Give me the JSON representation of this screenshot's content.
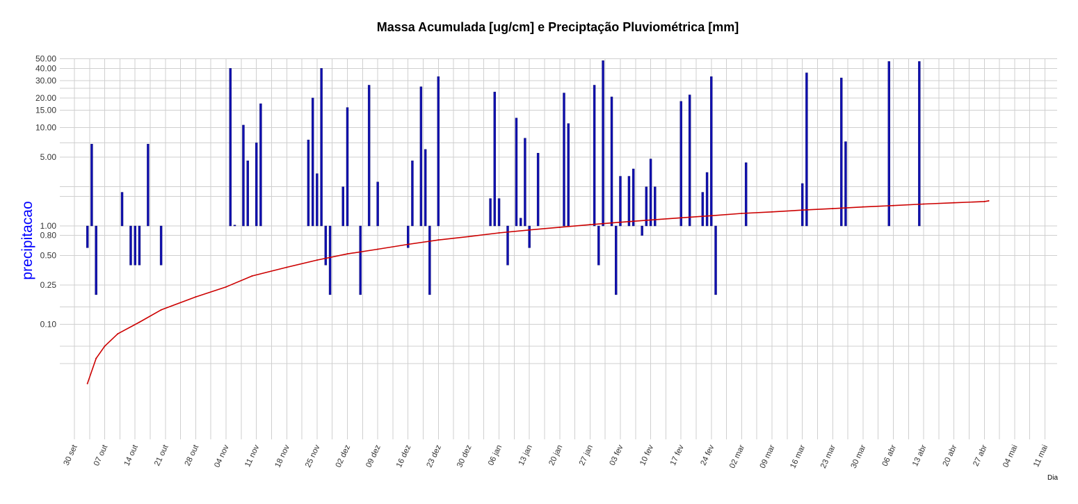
{
  "chart_data": {
    "type": "bar",
    "title": "Massa Acumulada [ug/cm] e Preciptação Pluviométrica [mm]",
    "ylabel": "precipitacao",
    "xlabel": "Dia",
    "y_scale": "log",
    "ylim": [
      0.015,
      55
    ],
    "xlim": [
      "2023-09-22",
      "2024-05-13"
    ],
    "grid": true,
    "legend": "none",
    "colors": {
      "bars": "#1010b0",
      "line": "#cc0000",
      "ylabel": "#0000ff",
      "grid": "#cfcfcf"
    },
    "y_ticks": [
      {
        "v": 0.1,
        "label": "0.10"
      },
      {
        "v": 0.25,
        "label": "0.25"
      },
      {
        "v": 0.5,
        "label": "0.50"
      },
      {
        "v": 0.8,
        "label": "0.80"
      },
      {
        "v": 1,
        "label": "1.00"
      },
      {
        "v": 5,
        "label": "5.00"
      },
      {
        "v": 10,
        "label": "10.00"
      },
      {
        "v": 15,
        "label": "15.00"
      },
      {
        "v": 20,
        "label": "20.00"
      },
      {
        "v": 30,
        "label": "30.00"
      },
      {
        "v": 40,
        "label": "40.00"
      },
      {
        "v": 50,
        "label": "50.00"
      }
    ],
    "y_minor_grid": [
      0.04,
      0.06,
      0.15,
      2,
      2.5,
      7,
      25
    ],
    "x_ticks": [
      {
        "d": "2023-09-30",
        "label": "30 set"
      },
      {
        "d": "2023-10-07",
        "label": "07 out"
      },
      {
        "d": "2023-10-14",
        "label": "14 out"
      },
      {
        "d": "2023-10-21",
        "label": "21 out"
      },
      {
        "d": "2023-10-28",
        "label": "28 out"
      },
      {
        "d": "2023-11-04",
        "label": "04 nov"
      },
      {
        "d": "2023-11-11",
        "label": "11 nov"
      },
      {
        "d": "2023-11-18",
        "label": "18 nov"
      },
      {
        "d": "2023-11-25",
        "label": "25 nov"
      },
      {
        "d": "2023-12-02",
        "label": "02 dez"
      },
      {
        "d": "2023-12-09",
        "label": "09 dez"
      },
      {
        "d": "2023-12-16",
        "label": "16 dez"
      },
      {
        "d": "2023-12-23",
        "label": "23 dez"
      },
      {
        "d": "2023-12-30",
        "label": "30 dez"
      },
      {
        "d": "2024-01-06",
        "label": "06 jan"
      },
      {
        "d": "2024-01-13",
        "label": "13 jan"
      },
      {
        "d": "2024-01-20",
        "label": "20 jan"
      },
      {
        "d": "2024-01-27",
        "label": "27 jan"
      },
      {
        "d": "2024-02-03",
        "label": "03 fev"
      },
      {
        "d": "2024-02-10",
        "label": "10 fev"
      },
      {
        "d": "2024-02-17",
        "label": "17 fev"
      },
      {
        "d": "2024-02-24",
        "label": "24 fev"
      },
      {
        "d": "2024-03-02",
        "label": "02 mar"
      },
      {
        "d": "2024-03-09",
        "label": "09 mar"
      },
      {
        "d": "2024-03-16",
        "label": "16 mar"
      },
      {
        "d": "2024-03-23",
        "label": "23 mar"
      },
      {
        "d": "2024-03-30",
        "label": "30 mar"
      },
      {
        "d": "2024-04-06",
        "label": "06 abr"
      },
      {
        "d": "2024-04-13",
        "label": "13 abr"
      },
      {
        "d": "2024-04-20",
        "label": "20 abr"
      },
      {
        "d": "2024-04-27",
        "label": "27 abr"
      },
      {
        "d": "2024-05-04",
        "label": "04 mai"
      },
      {
        "d": "2024-05-11",
        "label": "11 mai"
      }
    ],
    "bar_baseline": 1,
    "precipitacao": [
      {
        "d": "2023-10-03",
        "v": 0.6
      },
      {
        "d": "2023-10-04",
        "v": 6.8
      },
      {
        "d": "2023-10-05",
        "v": 0.2
      },
      {
        "d": "2023-10-11",
        "v": 2.2
      },
      {
        "d": "2023-10-13",
        "v": 0.4
      },
      {
        "d": "2023-10-14",
        "v": 0.4
      },
      {
        "d": "2023-10-15",
        "v": 0.4
      },
      {
        "d": "2023-10-17",
        "v": 6.8
      },
      {
        "d": "2023-10-20",
        "v": 0.4
      },
      {
        "d": "2023-11-05",
        "v": 40
      },
      {
        "d": "2023-11-06",
        "v": 1.02
      },
      {
        "d": "2023-11-08",
        "v": 10.6
      },
      {
        "d": "2023-11-09",
        "v": 4.6
      },
      {
        "d": "2023-11-11",
        "v": 7
      },
      {
        "d": "2023-11-12",
        "v": 17.5
      },
      {
        "d": "2023-11-23",
        "v": 7.5
      },
      {
        "d": "2023-11-24",
        "v": 20
      },
      {
        "d": "2023-11-25",
        "v": 3.4
      },
      {
        "d": "2023-11-26",
        "v": 40
      },
      {
        "d": "2023-11-27",
        "v": 0.4
      },
      {
        "d": "2023-11-28",
        "v": 0.2
      },
      {
        "d": "2023-12-01",
        "v": 2.5
      },
      {
        "d": "2023-12-02",
        "v": 16
      },
      {
        "d": "2023-12-05",
        "v": 0.2
      },
      {
        "d": "2023-12-07",
        "v": 27
      },
      {
        "d": "2023-12-09",
        "v": 2.8
      },
      {
        "d": "2023-12-16",
        "v": 0.6
      },
      {
        "d": "2023-12-17",
        "v": 4.6
      },
      {
        "d": "2023-12-19",
        "v": 26
      },
      {
        "d": "2023-12-20",
        "v": 6
      },
      {
        "d": "2023-12-21",
        "v": 0.2
      },
      {
        "d": "2023-12-23",
        "v": 33
      },
      {
        "d": "2024-01-04",
        "v": 1.9
      },
      {
        "d": "2024-01-05",
        "v": 23
      },
      {
        "d": "2024-01-06",
        "v": 1.9
      },
      {
        "d": "2024-01-08",
        "v": 0.4
      },
      {
        "d": "2024-01-10",
        "v": 12.5
      },
      {
        "d": "2024-01-11",
        "v": 1.2
      },
      {
        "d": "2024-01-12",
        "v": 7.8
      },
      {
        "d": "2024-01-13",
        "v": 0.6
      },
      {
        "d": "2024-01-15",
        "v": 5.5
      },
      {
        "d": "2024-01-21",
        "v": 22.5
      },
      {
        "d": "2024-01-22",
        "v": 11
      },
      {
        "d": "2024-01-28",
        "v": 27
      },
      {
        "d": "2024-01-29",
        "v": 0.4
      },
      {
        "d": "2024-01-30",
        "v": 48
      },
      {
        "d": "2024-02-01",
        "v": 20.5
      },
      {
        "d": "2024-02-02",
        "v": 0.2
      },
      {
        "d": "2024-02-03",
        "v": 3.2
      },
      {
        "d": "2024-02-05",
        "v": 3.2
      },
      {
        "d": "2024-02-06",
        "v": 3.8
      },
      {
        "d": "2024-02-08",
        "v": 0.8
      },
      {
        "d": "2024-02-09",
        "v": 2.5
      },
      {
        "d": "2024-02-10",
        "v": 4.8
      },
      {
        "d": "2024-02-11",
        "v": 2.5
      },
      {
        "d": "2024-02-17",
        "v": 18.5
      },
      {
        "d": "2024-02-19",
        "v": 21.5
      },
      {
        "d": "2024-02-22",
        "v": 2.2
      },
      {
        "d": "2024-02-23",
        "v": 3.5
      },
      {
        "d": "2024-02-24",
        "v": 33
      },
      {
        "d": "2024-02-25",
        "v": 0.2
      },
      {
        "d": "2024-03-03",
        "v": 4.4
      },
      {
        "d": "2024-03-16",
        "v": 2.7
      },
      {
        "d": "2024-03-17",
        "v": 36
      },
      {
        "d": "2024-03-25",
        "v": 32
      },
      {
        "d": "2024-03-26",
        "v": 7.2
      },
      {
        "d": "2024-04-05",
        "v": 47
      },
      {
        "d": "2024-04-12",
        "v": 47
      }
    ],
    "massa_acumulada": [
      {
        "d": "2023-10-03",
        "v": 0.025
      },
      {
        "d": "2023-10-05",
        "v": 0.045
      },
      {
        "d": "2023-10-07",
        "v": 0.06
      },
      {
        "d": "2023-10-10",
        "v": 0.08
      },
      {
        "d": "2023-10-15",
        "v": 0.105
      },
      {
        "d": "2023-10-20",
        "v": 0.14
      },
      {
        "d": "2023-10-28",
        "v": 0.19
      },
      {
        "d": "2023-11-04",
        "v": 0.24
      },
      {
        "d": "2023-11-10",
        "v": 0.31
      },
      {
        "d": "2023-11-18",
        "v": 0.38
      },
      {
        "d": "2023-11-25",
        "v": 0.45
      },
      {
        "d": "2023-12-02",
        "v": 0.52
      },
      {
        "d": "2023-12-09",
        "v": 0.58
      },
      {
        "d": "2023-12-16",
        "v": 0.65
      },
      {
        "d": "2023-12-23",
        "v": 0.72
      },
      {
        "d": "2023-12-30",
        "v": 0.78
      },
      {
        "d": "2024-01-06",
        "v": 0.85
      },
      {
        "d": "2024-01-13",
        "v": 0.91
      },
      {
        "d": "2024-01-20",
        "v": 0.97
      },
      {
        "d": "2024-01-27",
        "v": 1.03
      },
      {
        "d": "2024-02-03",
        "v": 1.09
      },
      {
        "d": "2024-02-10",
        "v": 1.15
      },
      {
        "d": "2024-02-17",
        "v": 1.21
      },
      {
        "d": "2024-02-24",
        "v": 1.27
      },
      {
        "d": "2024-03-02",
        "v": 1.34
      },
      {
        "d": "2024-03-09",
        "v": 1.39
      },
      {
        "d": "2024-03-16",
        "v": 1.45
      },
      {
        "d": "2024-03-23",
        "v": 1.5
      },
      {
        "d": "2024-03-30",
        "v": 1.56
      },
      {
        "d": "2024-04-06",
        "v": 1.61
      },
      {
        "d": "2024-04-13",
        "v": 1.67
      },
      {
        "d": "2024-04-20",
        "v": 1.72
      },
      {
        "d": "2024-04-27",
        "v": 1.77
      },
      {
        "d": "2024-04-28",
        "v": 1.8
      }
    ]
  }
}
